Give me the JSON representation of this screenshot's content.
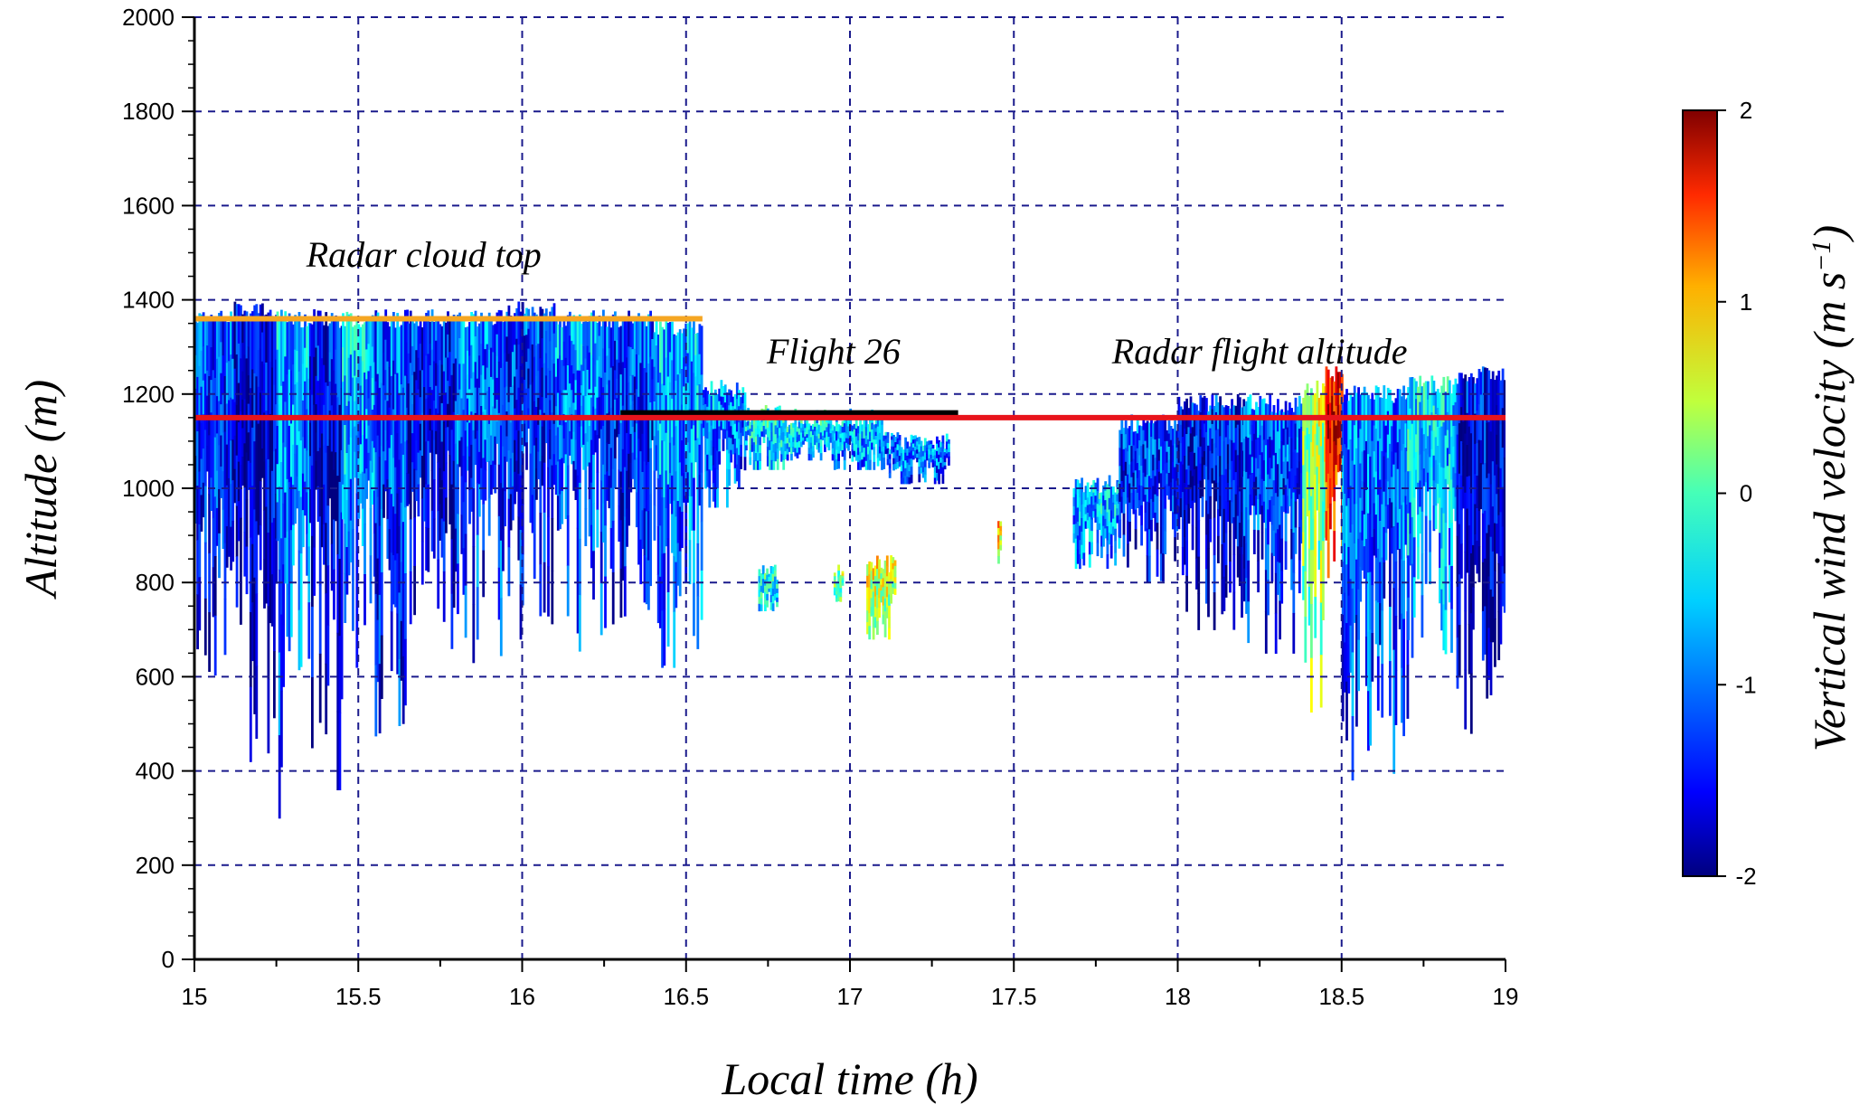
{
  "chart_data": {
    "type": "heatmap",
    "title": "",
    "xlabel": "Local time (h)",
    "ylabel": "Altitude (m)",
    "xlim": [
      15,
      19
    ],
    "ylim": [
      0,
      2000
    ],
    "x_ticks": [
      "15",
      "15.5",
      "16",
      "16.5",
      "17",
      "17.5",
      "18",
      "18.5",
      "19"
    ],
    "y_ticks": [
      "0",
      "200",
      "400",
      "600",
      "800",
      "1000",
      "1200",
      "1400",
      "1600",
      "1800",
      "2000"
    ],
    "grid": true,
    "colorbar": {
      "label": "Vertical wind velocity (m s⁻¹)",
      "label_main": "Vertical wind velocity (m s",
      "label_exp": "−1",
      "label_close": ")",
      "range": [
        -2,
        2
      ],
      "ticks": [
        "2",
        "1",
        "0",
        "-1",
        "-2"
      ],
      "colormap": "jet"
    },
    "lines": [
      {
        "name": "Radar cloud top",
        "color": "#f5a623",
        "x": [
          15.0,
          16.55
        ],
        "y": [
          1360,
          1360
        ]
      },
      {
        "name": "Flight 26",
        "color": "#000000",
        "x": [
          16.3,
          17.33
        ],
        "y": [
          1160,
          1160
        ]
      },
      {
        "name": "Radar flight altitude",
        "color": "#e8141c",
        "x": [
          15.0,
          19.0
        ],
        "y": [
          1150,
          1150
        ]
      }
    ],
    "annotations": [
      {
        "text": "Radar cloud top",
        "x": 15.7,
        "y": 1470
      },
      {
        "text": "Flight 26",
        "x": 16.95,
        "y": 1265
      },
      {
        "text": "Radar flight altitude",
        "x": 18.25,
        "y": 1265
      }
    ],
    "cloud_regions": [
      {
        "x0": 15.0,
        "x1": 15.12,
        "top": 1380,
        "bottom": 600,
        "w": -1.2
      },
      {
        "x0": 15.12,
        "x1": 15.25,
        "top": 1400,
        "bottom": 420,
        "w": -1.6
      },
      {
        "x0": 15.25,
        "x1": 15.35,
        "top": 1380,
        "bottom": 300,
        "w": -0.8
      },
      {
        "x0": 15.35,
        "x1": 15.45,
        "top": 1380,
        "bottom": 360,
        "w": -1.5
      },
      {
        "x0": 15.45,
        "x1": 15.55,
        "top": 1380,
        "bottom": 620,
        "w": -0.7
      },
      {
        "x0": 15.55,
        "x1": 15.65,
        "top": 1380,
        "bottom": 400,
        "w": -1.1
      },
      {
        "x0": 15.65,
        "x1": 15.8,
        "top": 1380,
        "bottom": 660,
        "w": -1.4
      },
      {
        "x0": 15.8,
        "x1": 15.95,
        "top": 1380,
        "bottom": 620,
        "w": -1.0
      },
      {
        "x0": 15.95,
        "x1": 16.1,
        "top": 1400,
        "bottom": 680,
        "w": -1.3
      },
      {
        "x0": 16.1,
        "x1": 16.25,
        "top": 1380,
        "bottom": 650,
        "w": -0.9
      },
      {
        "x0": 16.25,
        "x1": 16.4,
        "top": 1380,
        "bottom": 700,
        "w": -1.2
      },
      {
        "x0": 16.4,
        "x1": 16.55,
        "top": 1360,
        "bottom": 620,
        "w": -0.8
      },
      {
        "x0": 16.55,
        "x1": 16.68,
        "top": 1230,
        "bottom": 960,
        "w": -0.9
      },
      {
        "x0": 16.68,
        "x1": 16.8,
        "top": 1180,
        "bottom": 1040,
        "w": -0.5
      },
      {
        "x0": 16.8,
        "x1": 16.95,
        "top": 1170,
        "bottom": 1060,
        "w": -0.6
      },
      {
        "x0": 16.95,
        "x1": 17.1,
        "top": 1170,
        "bottom": 1040,
        "w": -0.7
      },
      {
        "x0": 17.1,
        "x1": 17.3,
        "top": 1120,
        "bottom": 1010,
        "w": -0.9
      },
      {
        "x0": 16.72,
        "x1": 16.78,
        "top": 840,
        "bottom": 740,
        "w": -0.4
      },
      {
        "x0": 16.95,
        "x1": 16.98,
        "top": 840,
        "bottom": 760,
        "w": 0.2
      },
      {
        "x0": 17.05,
        "x1": 17.14,
        "top": 860,
        "bottom": 680,
        "w": 0.4
      },
      {
        "x0": 17.45,
        "x1": 17.46,
        "top": 960,
        "bottom": 840,
        "w": 0.7
      },
      {
        "x0": 17.68,
        "x1": 17.82,
        "top": 1030,
        "bottom": 830,
        "w": -0.7
      },
      {
        "x0": 17.82,
        "x1": 18.0,
        "top": 1160,
        "bottom": 800,
        "w": -1.2
      },
      {
        "x0": 18.0,
        "x1": 18.2,
        "top": 1200,
        "bottom": 700,
        "w": -1.4
      },
      {
        "x0": 18.2,
        "x1": 18.38,
        "top": 1200,
        "bottom": 650,
        "w": -1.1
      },
      {
        "x0": 18.38,
        "x1": 18.45,
        "top": 1230,
        "bottom": 450,
        "w": 0.3
      },
      {
        "x0": 18.45,
        "x1": 18.5,
        "top": 1260,
        "bottom": 760,
        "w": 1.6
      },
      {
        "x0": 18.5,
        "x1": 18.7,
        "top": 1220,
        "bottom": 380,
        "w": -1.0
      },
      {
        "x0": 18.7,
        "x1": 18.85,
        "top": 1240,
        "bottom": 620,
        "w": -0.6
      },
      {
        "x0": 18.85,
        "x1": 19.0,
        "top": 1260,
        "bottom": 480,
        "w": -1.5
      }
    ]
  }
}
